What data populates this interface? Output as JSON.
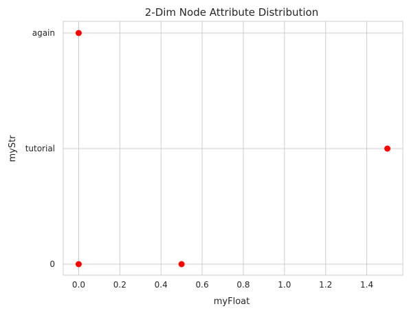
{
  "chart_data": {
    "type": "scatter",
    "title": "2-Dim Node Attribute Distribution",
    "xlabel": "myFloat",
    "ylabel": "myStr",
    "xlim": [
      -0.075,
      1.575
    ],
    "x_ticks": [
      0.0,
      0.2,
      0.4,
      0.6,
      0.8,
      1.0,
      1.2,
      1.4
    ],
    "x_tick_labels": [
      "0.0",
      "0.2",
      "0.4",
      "0.6",
      "0.8",
      "1.0",
      "1.2",
      "1.4"
    ],
    "y_categories": [
      "0",
      "tutorial",
      "again"
    ],
    "grid": true,
    "marker_color": "#ff0000",
    "points": [
      {
        "x": 0.0,
        "y": "again"
      },
      {
        "x": 1.5,
        "y": "tutorial"
      },
      {
        "x": 0.0,
        "y": "0"
      },
      {
        "x": 0.5,
        "y": "0"
      }
    ]
  }
}
